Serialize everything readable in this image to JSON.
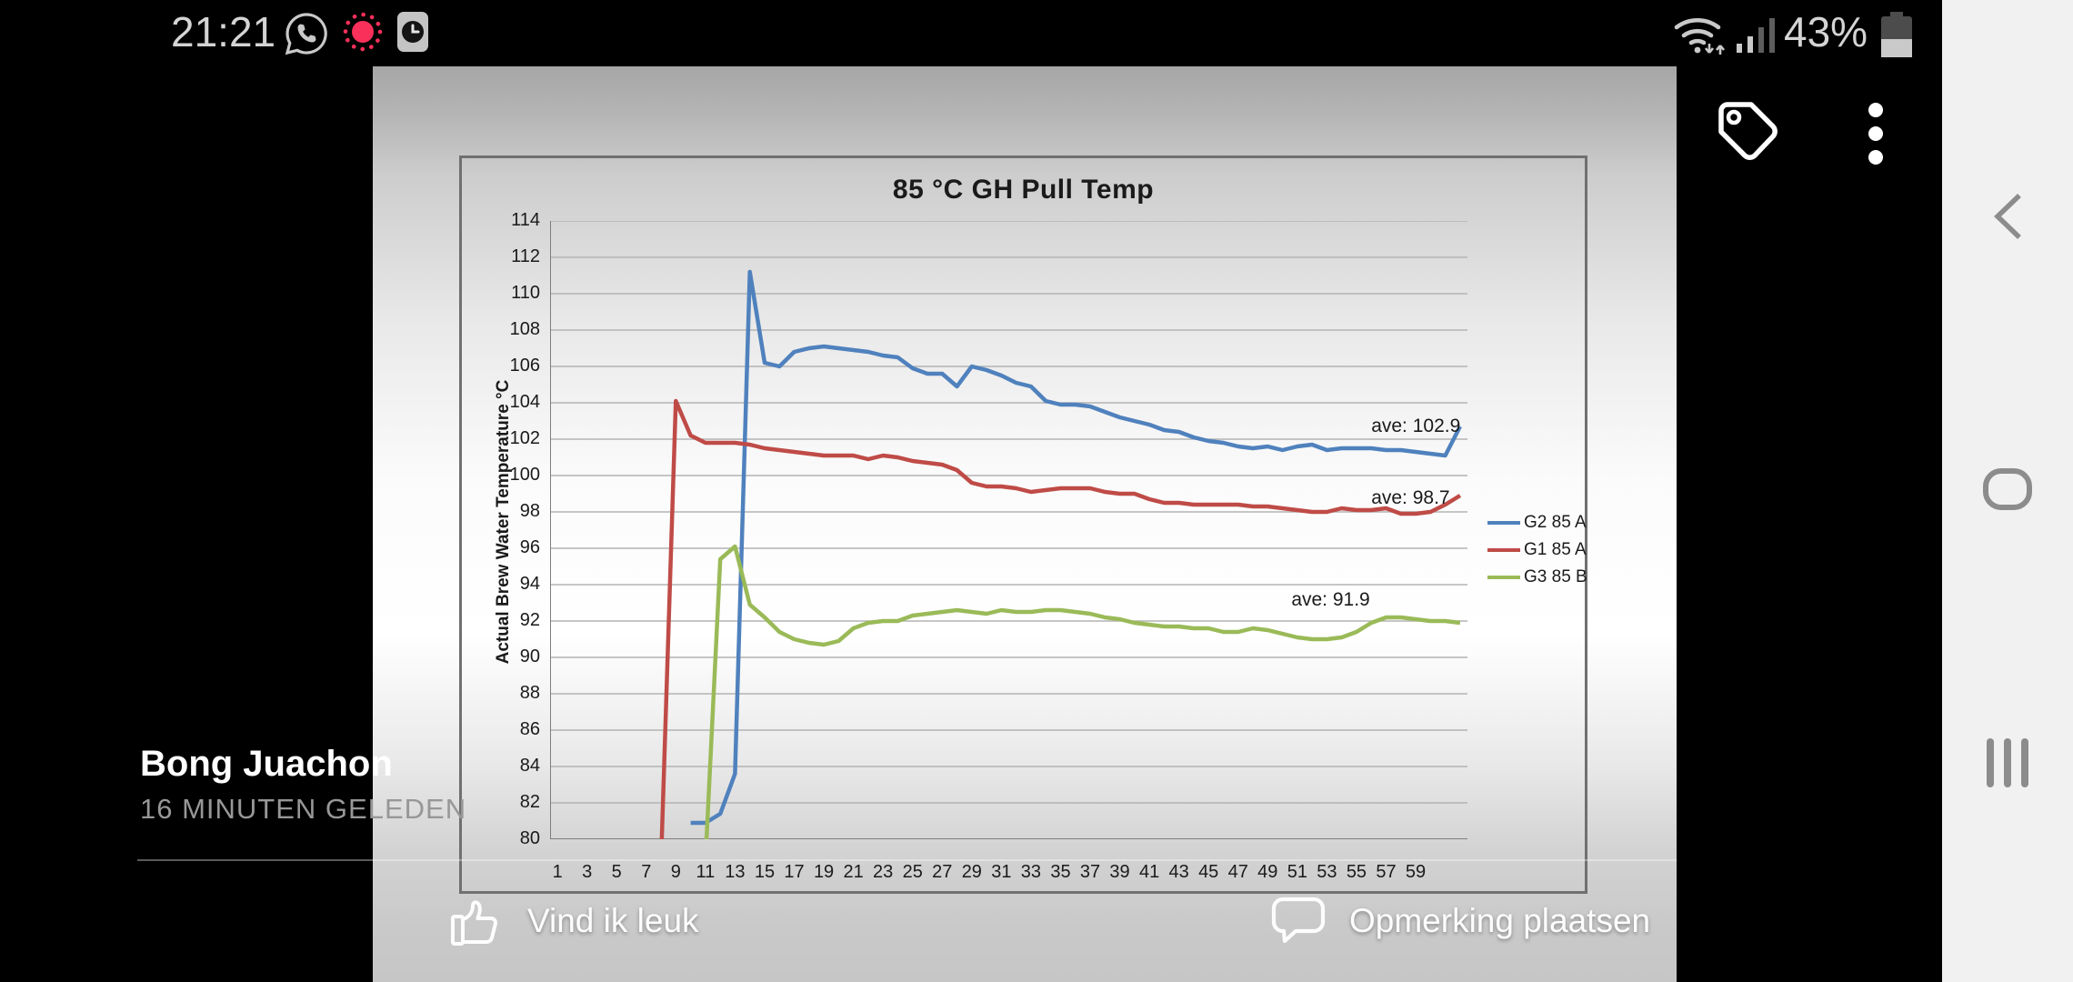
{
  "status_bar": {
    "time": "21:21",
    "battery_percent": "43%",
    "battery_level": 0.43,
    "left_icons": [
      "whatsapp-icon",
      "screen-record-icon",
      "clock-badge-icon"
    ],
    "right_icons": [
      "wifi-icon",
      "signal-icon",
      "battery-icon"
    ]
  },
  "nav_bar": {
    "icons": [
      "back-icon",
      "home-icon",
      "recents-icon"
    ]
  },
  "post": {
    "author": "Bong Juachon",
    "timestamp": "16 MINUTEN GELEDEN",
    "like_label": "Vind ik leuk",
    "comment_label": "Opmerking plaatsen",
    "top_icons": [
      "tag-icon",
      "more-menu-icon"
    ]
  },
  "chart_data": {
    "type": "line",
    "title": "85 °C GH Pull Temp",
    "xlabel": "",
    "ylabel": "Actual Brew Water Temperature °C",
    "ylim": [
      80,
      114
    ],
    "xlim": [
      0,
      62
    ],
    "grid": true,
    "legend_position": "right",
    "yticks": [
      114,
      112,
      110,
      108,
      106,
      104,
      102,
      100,
      98,
      96,
      94,
      92,
      90,
      88,
      86,
      84,
      82,
      80
    ],
    "xticks": [
      1,
      3,
      5,
      7,
      9,
      11,
      13,
      15,
      17,
      19,
      21,
      23,
      25,
      27,
      29,
      31,
      33,
      35,
      37,
      39,
      41,
      43,
      45,
      47,
      49,
      51,
      53,
      55,
      57,
      59
    ],
    "annotations": [
      {
        "text": "ave: 102.9",
        "x": 56.0,
        "v": 102.65
      },
      {
        "text": "ave: 98.7",
        "x": 56.0,
        "v": 98.7
      },
      {
        "text": "ave: 91.9",
        "x": 50.6,
        "v": 93.1
      }
    ],
    "series": [
      {
        "name": "G2 85 A",
        "color": "#4f81bd",
        "average": 102.9,
        "points": [
          [
            10,
            80.9
          ],
          [
            11,
            80.9
          ],
          [
            12,
            81.4
          ],
          [
            13,
            83.6
          ],
          [
            14,
            111.2
          ],
          [
            15,
            106.2
          ],
          [
            16,
            106.0
          ],
          [
            17,
            106.8
          ],
          [
            18,
            107.0
          ],
          [
            19,
            107.1
          ],
          [
            20,
            107.0
          ],
          [
            21,
            106.9
          ],
          [
            22,
            106.8
          ],
          [
            23,
            106.6
          ],
          [
            24,
            106.5
          ],
          [
            25,
            105.9
          ],
          [
            26,
            105.6
          ],
          [
            27,
            105.6
          ],
          [
            28,
            104.9
          ],
          [
            29,
            106.0
          ],
          [
            30,
            105.8
          ],
          [
            31,
            105.5
          ],
          [
            32,
            105.1
          ],
          [
            33,
            104.9
          ],
          [
            34,
            104.1
          ],
          [
            35,
            103.9
          ],
          [
            36,
            103.9
          ],
          [
            37,
            103.8
          ],
          [
            38,
            103.5
          ],
          [
            39,
            103.2
          ],
          [
            40,
            103.0
          ],
          [
            41,
            102.8
          ],
          [
            42,
            102.5
          ],
          [
            43,
            102.4
          ],
          [
            44,
            102.1
          ],
          [
            45,
            101.9
          ],
          [
            46,
            101.8
          ],
          [
            47,
            101.6
          ],
          [
            48,
            101.5
          ],
          [
            49,
            101.6
          ],
          [
            50,
            101.4
          ],
          [
            51,
            101.6
          ],
          [
            52,
            101.7
          ],
          [
            53,
            101.4
          ],
          [
            54,
            101.5
          ],
          [
            55,
            101.5
          ],
          [
            56,
            101.5
          ],
          [
            57,
            101.4
          ],
          [
            58,
            101.4
          ],
          [
            59,
            101.3
          ],
          [
            60,
            101.2
          ],
          [
            61,
            101.1
          ],
          [
            62,
            102.7
          ]
        ]
      },
      {
        "name": "G1 85 A",
        "color": "#bf4b47",
        "average": 98.7,
        "points": [
          [
            8,
            78.8
          ],
          [
            9,
            104.1
          ],
          [
            10,
            102.2
          ],
          [
            11,
            101.8
          ],
          [
            12,
            101.8
          ],
          [
            13,
            101.8
          ],
          [
            14,
            101.7
          ],
          [
            15,
            101.5
          ],
          [
            16,
            101.4
          ],
          [
            17,
            101.3
          ],
          [
            18,
            101.2
          ],
          [
            19,
            101.1
          ],
          [
            20,
            101.1
          ],
          [
            21,
            101.1
          ],
          [
            22,
            100.9
          ],
          [
            23,
            101.1
          ],
          [
            24,
            101.0
          ],
          [
            25,
            100.8
          ],
          [
            26,
            100.7
          ],
          [
            27,
            100.6
          ],
          [
            28,
            100.3
          ],
          [
            29,
            99.6
          ],
          [
            30,
            99.4
          ],
          [
            31,
            99.4
          ],
          [
            32,
            99.3
          ],
          [
            33,
            99.1
          ],
          [
            34,
            99.2
          ],
          [
            35,
            99.3
          ],
          [
            36,
            99.3
          ],
          [
            37,
            99.3
          ],
          [
            38,
            99.1
          ],
          [
            39,
            99.0
          ],
          [
            40,
            99.0
          ],
          [
            41,
            98.7
          ],
          [
            42,
            98.5
          ],
          [
            43,
            98.5
          ],
          [
            44,
            98.4
          ],
          [
            45,
            98.4
          ],
          [
            46,
            98.4
          ],
          [
            47,
            98.4
          ],
          [
            48,
            98.3
          ],
          [
            49,
            98.3
          ],
          [
            50,
            98.2
          ],
          [
            51,
            98.1
          ],
          [
            52,
            98.0
          ],
          [
            53,
            98.0
          ],
          [
            54,
            98.2
          ],
          [
            55,
            98.1
          ],
          [
            56,
            98.1
          ],
          [
            57,
            98.2
          ],
          [
            58,
            97.9
          ],
          [
            59,
            97.9
          ],
          [
            60,
            98.0
          ],
          [
            61,
            98.4
          ],
          [
            62,
            98.9
          ]
        ]
      },
      {
        "name": "G3 85 B",
        "color": "#9aba58",
        "average": 91.9,
        "points": [
          [
            11,
            78.8
          ],
          [
            12,
            95.4
          ],
          [
            13,
            96.1
          ],
          [
            14,
            92.9
          ],
          [
            15,
            92.2
          ],
          [
            16,
            91.4
          ],
          [
            17,
            91.0
          ],
          [
            18,
            90.8
          ],
          [
            19,
            90.7
          ],
          [
            20,
            90.9
          ],
          [
            21,
            91.6
          ],
          [
            22,
            91.9
          ],
          [
            23,
            92.0
          ],
          [
            24,
            92.0
          ],
          [
            25,
            92.3
          ],
          [
            26,
            92.4
          ],
          [
            27,
            92.5
          ],
          [
            28,
            92.6
          ],
          [
            29,
            92.5
          ],
          [
            30,
            92.4
          ],
          [
            31,
            92.6
          ],
          [
            32,
            92.5
          ],
          [
            33,
            92.5
          ],
          [
            34,
            92.6
          ],
          [
            35,
            92.6
          ],
          [
            36,
            92.5
          ],
          [
            37,
            92.4
          ],
          [
            38,
            92.2
          ],
          [
            39,
            92.1
          ],
          [
            40,
            91.9
          ],
          [
            41,
            91.8
          ],
          [
            42,
            91.7
          ],
          [
            43,
            91.7
          ],
          [
            44,
            91.6
          ],
          [
            45,
            91.6
          ],
          [
            46,
            91.4
          ],
          [
            47,
            91.4
          ],
          [
            48,
            91.6
          ],
          [
            49,
            91.5
          ],
          [
            50,
            91.3
          ],
          [
            51,
            91.1
          ],
          [
            52,
            91.0
          ],
          [
            53,
            91.0
          ],
          [
            54,
            91.1
          ],
          [
            55,
            91.4
          ],
          [
            56,
            91.9
          ],
          [
            57,
            92.2
          ],
          [
            58,
            92.2
          ],
          [
            59,
            92.1
          ],
          [
            60,
            92.0
          ],
          [
            61,
            92.0
          ],
          [
            62,
            91.9
          ]
        ]
      }
    ]
  }
}
